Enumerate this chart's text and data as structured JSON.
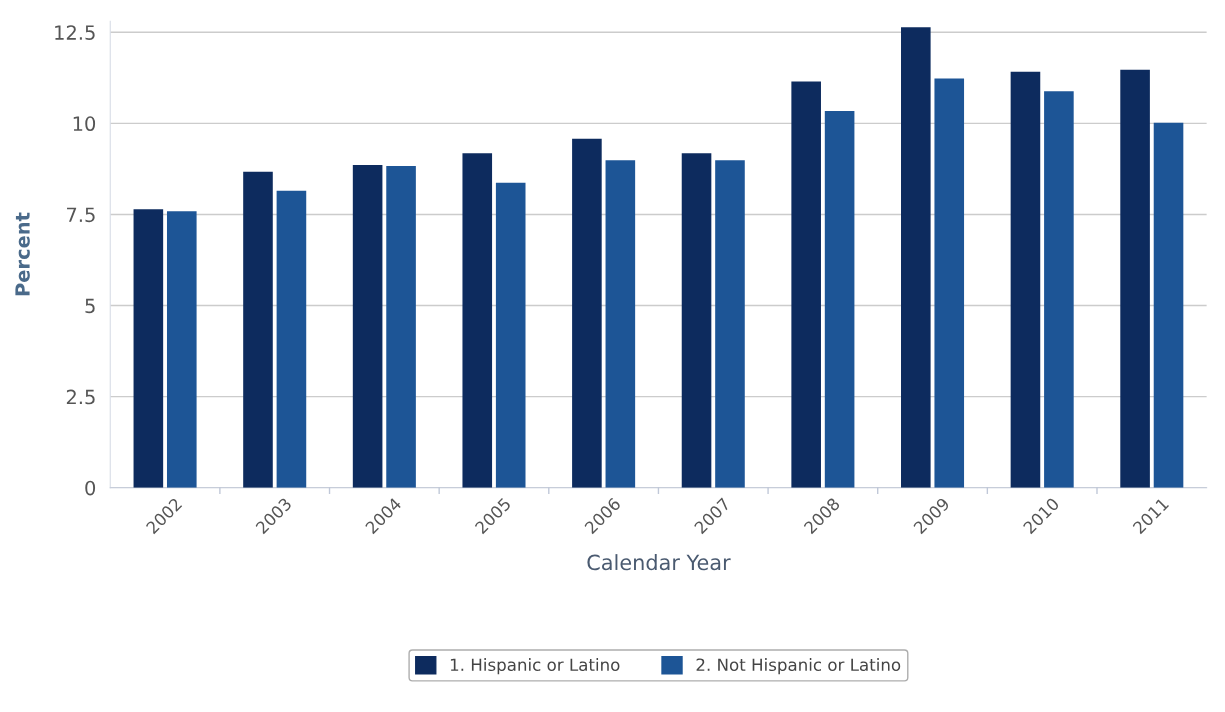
{
  "chart_data": {
    "type": "bar",
    "xlabel": "Calendar Year",
    "ylabel": "Percent",
    "categories": [
      "2002",
      "2003",
      "2004",
      "2005",
      "2006",
      "2007",
      "2008",
      "2009",
      "2010",
      "2011"
    ],
    "series": [
      {
        "name": "1. Hispanic or Latino",
        "color": "#0d2b5e",
        "values": [
          7.64,
          8.67,
          8.86,
          9.18,
          9.58,
          9.18,
          11.15,
          12.64,
          11.42,
          11.47
        ]
      },
      {
        "name": "2. Not Hispanic or Latino",
        "color": "#1d5596",
        "values": [
          7.59,
          8.15,
          8.83,
          8.37,
          8.99,
          8.99,
          10.34,
          11.23,
          10.88,
          10.02
        ]
      }
    ],
    "ylim": [
      0,
      12.8
    ],
    "yticks": [
      0,
      2.5,
      5,
      7.5,
      10,
      12.5
    ],
    "grid": "y",
    "legend": "bottom"
  }
}
